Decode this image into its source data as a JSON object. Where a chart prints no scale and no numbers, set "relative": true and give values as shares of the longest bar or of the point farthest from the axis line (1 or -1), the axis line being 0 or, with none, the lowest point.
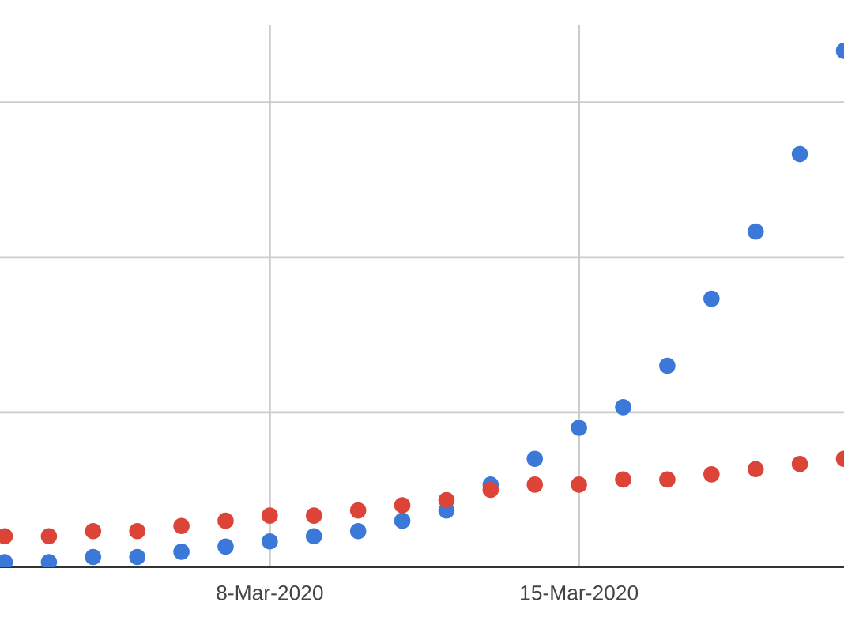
{
  "chart_data": {
    "type": "scatter",
    "relative": true,
    "x": [
      "2020-03-02",
      "2020-03-03",
      "2020-03-04",
      "2020-03-05",
      "2020-03-06",
      "2020-03-07",
      "2020-03-08",
      "2020-03-09",
      "2020-03-10",
      "2020-03-11",
      "2020-03-12",
      "2020-03-13",
      "2020-03-14",
      "2020-03-15",
      "2020-03-16",
      "2020-03-17",
      "2020-03-18",
      "2020-03-19",
      "2020-03-20",
      "2020-03-21"
    ],
    "xlim": [
      "2020-03-01T21:25",
      "2020-03-21T00:00"
    ],
    "xticks": [
      {
        "value": "2020-03-08",
        "label": "8-Mar-2020"
      },
      {
        "value": "2020-03-15",
        "label": "15-Mar-2020"
      }
    ],
    "series": [
      {
        "color": "#3c78d8",
        "values": [
          0.01,
          0.01,
          0.02,
          0.02,
          0.03,
          0.04,
          0.05,
          0.06,
          0.07,
          0.09,
          0.11,
          0.16,
          0.21,
          0.27,
          0.31,
          0.39,
          0.52,
          0.65,
          0.8,
          1
        ]
      },
      {
        "color": "#db4437",
        "values": [
          0.06,
          0.06,
          0.07,
          0.07,
          0.08,
          0.09,
          0.1,
          0.1,
          0.11,
          0.12,
          0.13,
          0.15,
          0.16,
          0.16,
          0.17,
          0.17,
          0.18,
          0.19,
          0.2,
          0.21
        ]
      }
    ],
    "marker": "circle",
    "grid": true,
    "legend": false
  }
}
